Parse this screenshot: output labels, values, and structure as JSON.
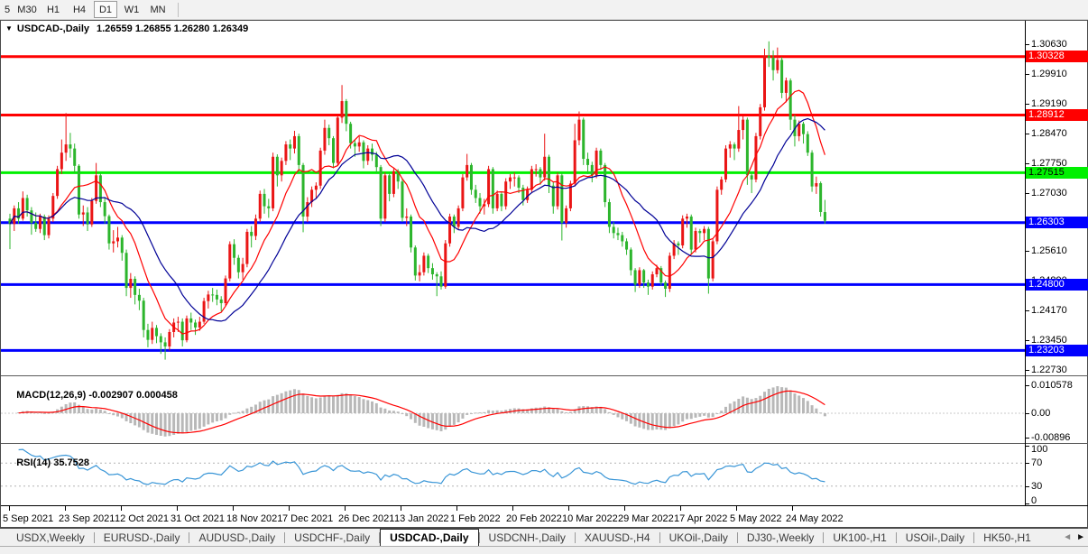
{
  "toolbar": {
    "timeframes": [
      "5",
      "M30",
      "H1",
      "H4",
      "D1",
      "W1",
      "MN"
    ],
    "active": "D1"
  },
  "chart": {
    "dropdown_icon": "▼",
    "title": "USDCAD-,Daily",
    "ohlc": "1.26559 1.26855 1.26280 1.26349",
    "open": "1.26559",
    "high": "1.26855",
    "low": "1.26280",
    "close": "1.26349"
  },
  "price_axis": {
    "ticks": [
      "1.30630",
      "1.29910",
      "1.29190",
      "1.28470",
      "1.27750",
      "1.27030",
      "1.26330",
      "1.25610",
      "1.24890",
      "1.24170",
      "1.23450",
      "1.22730"
    ]
  },
  "chart_data": {
    "type": "candlestick",
    "symbol": "USDCAD-",
    "timeframe": "Daily",
    "bull_color": "#ea1515",
    "bear_color": "#2cb52c",
    "price_range": [
      1.226,
      1.31
    ],
    "hlines": [
      {
        "price": 1.30328,
        "label": "1.30328",
        "color": "#ff0000",
        "text_color": "#ffffff"
      },
      {
        "price": 1.28912,
        "label": "1.28912",
        "color": "#ff0000",
        "text_color": "#ffffff"
      },
      {
        "price": 1.27515,
        "label": "1.27515",
        "color": "#00f000",
        "text_color": "#000000"
      },
      {
        "price": 1.26303,
        "label": "1.26303",
        "color": "#0000ff",
        "text_color": "#ffffff"
      },
      {
        "price": 1.248,
        "label": "1.24800",
        "color": "#0000ff",
        "text_color": "#ffffff"
      },
      {
        "price": 1.23203,
        "label": "1.23203",
        "color": "#0000ff",
        "text_color": "#ffffff"
      }
    ],
    "moving_averages": [
      {
        "period": 10,
        "color": "#ff0000"
      },
      {
        "period": 20,
        "color": "#000096"
      }
    ],
    "candles": [
      [
        1.264,
        1.2652,
        1.2566,
        1.2627
      ],
      [
        1.2627,
        1.2672,
        1.261,
        1.2665
      ],
      [
        1.2665,
        1.268,
        1.2628,
        1.264
      ],
      [
        1.264,
        1.2706,
        1.2635,
        1.269
      ],
      [
        1.269,
        1.2698,
        1.2645,
        1.266
      ],
      [
        1.266,
        1.2668,
        1.2601,
        1.263
      ],
      [
        1.263,
        1.2655,
        1.2608,
        1.2615
      ],
      [
        1.2615,
        1.2652,
        1.2605,
        1.2645
      ],
      [
        1.2645,
        1.265,
        1.2588,
        1.26
      ],
      [
        1.26,
        1.2648,
        1.2592,
        1.264
      ],
      [
        1.264,
        1.2702,
        1.2632,
        1.2695
      ],
      [
        1.2695,
        1.2768,
        1.2688,
        1.276
      ],
      [
        1.276,
        1.2832,
        1.2748,
        1.28
      ],
      [
        1.28,
        1.2896,
        1.278,
        1.282
      ],
      [
        1.282,
        1.2848,
        1.2788,
        1.281
      ],
      [
        1.281,
        1.2822,
        1.275,
        1.2768
      ],
      [
        1.2768,
        1.2772,
        1.264,
        1.265
      ],
      [
        1.265,
        1.2672,
        1.2622,
        1.2655
      ],
      [
        1.2655,
        1.2668,
        1.261,
        1.2626
      ],
      [
        1.2626,
        1.269,
        1.262,
        1.2683
      ],
      [
        1.2683,
        1.2775,
        1.2676,
        1.2745
      ],
      [
        1.2745,
        1.275,
        1.2668,
        1.268
      ],
      [
        1.268,
        1.2692,
        1.2628,
        1.2646
      ],
      [
        1.2646,
        1.265,
        1.2565,
        1.258
      ],
      [
        1.258,
        1.2612,
        1.2558,
        1.2585
      ],
      [
        1.2585,
        1.262,
        1.257,
        1.2594
      ],
      [
        1.2594,
        1.26,
        1.2538,
        1.2557
      ],
      [
        1.2557,
        1.2565,
        1.2452,
        1.2472
      ],
      [
        1.2472,
        1.2508,
        1.2448,
        1.2494
      ],
      [
        1.2494,
        1.25,
        1.2432,
        1.2455
      ],
      [
        1.2455,
        1.247,
        1.2418,
        1.2441
      ],
      [
        1.2441,
        1.2448,
        1.2352,
        1.237
      ],
      [
        1.237,
        1.2385,
        1.2328,
        1.2346
      ],
      [
        1.2346,
        1.239,
        1.2336,
        1.2375
      ],
      [
        1.2375,
        1.2382,
        1.2338,
        1.2355
      ],
      [
        1.2355,
        1.2362,
        1.2312,
        1.234
      ],
      [
        1.234,
        1.2352,
        1.2298,
        1.233
      ],
      [
        1.233,
        1.2372,
        1.232,
        1.2365
      ],
      [
        1.2365,
        1.2398,
        1.2352,
        1.2388
      ],
      [
        1.2388,
        1.2402,
        1.2365,
        1.239
      ],
      [
        1.239,
        1.2398,
        1.233,
        1.2345
      ],
      [
        1.2345,
        1.2405,
        1.234,
        1.2398
      ],
      [
        1.2398,
        1.2412,
        1.237,
        1.2388
      ],
      [
        1.2388,
        1.2395,
        1.2358,
        1.2376
      ],
      [
        1.2376,
        1.2402,
        1.2368,
        1.239
      ],
      [
        1.239,
        1.2448,
        1.2385,
        1.244
      ],
      [
        1.244,
        1.2465,
        1.2422,
        1.2456
      ],
      [
        1.2456,
        1.2472,
        1.2438,
        1.2455
      ],
      [
        1.2455,
        1.2468,
        1.243,
        1.2444
      ],
      [
        1.2444,
        1.2452,
        1.2415,
        1.2435
      ],
      [
        1.2435,
        1.2502,
        1.2428,
        1.2495
      ],
      [
        1.2495,
        1.2585,
        1.2488,
        1.2578
      ],
      [
        1.2578,
        1.259,
        1.2528,
        1.2545
      ],
      [
        1.2545,
        1.2552,
        1.2495,
        1.251
      ],
      [
        1.251,
        1.2545,
        1.2492,
        1.253
      ],
      [
        1.253,
        1.2615,
        1.2522,
        1.2608
      ],
      [
        1.2608,
        1.2622,
        1.257,
        1.2598
      ],
      [
        1.2598,
        1.265,
        1.2588,
        1.264
      ],
      [
        1.264,
        1.2708,
        1.2632,
        1.27
      ],
      [
        1.27,
        1.2712,
        1.2652,
        1.267
      ],
      [
        1.267,
        1.2688,
        1.2642,
        1.2665
      ],
      [
        1.2665,
        1.28,
        1.2658,
        1.279
      ],
      [
        1.279,
        1.2796,
        1.2718,
        1.2745
      ],
      [
        1.2745,
        1.2788,
        1.273,
        1.278
      ],
      [
        1.278,
        1.2828,
        1.277,
        1.282
      ],
      [
        1.282,
        1.2832,
        1.2782,
        1.281
      ],
      [
        1.281,
        1.2853,
        1.2798,
        1.284
      ],
      [
        1.284,
        1.2846,
        1.2752,
        1.277
      ],
      [
        1.277,
        1.2775,
        1.2607,
        1.2645
      ],
      [
        1.2645,
        1.2692,
        1.2632,
        1.268
      ],
      [
        1.268,
        1.2718,
        1.2668,
        1.271
      ],
      [
        1.271,
        1.2728,
        1.2688,
        1.272
      ],
      [
        1.272,
        1.2812,
        1.2712,
        1.2805
      ],
      [
        1.2805,
        1.288,
        1.2795,
        1.286
      ],
      [
        1.286,
        1.2868,
        1.2818,
        1.2835
      ],
      [
        1.2835,
        1.284,
        1.2762,
        1.2775
      ],
      [
        1.2775,
        1.289,
        1.2768,
        1.2885
      ],
      [
        1.2885,
        1.2964,
        1.2872,
        1.2925
      ],
      [
        1.2925,
        1.293,
        1.2852,
        1.287
      ],
      [
        1.287,
        1.2875,
        1.281,
        1.2823
      ],
      [
        1.2823,
        1.2832,
        1.279,
        1.2815
      ],
      [
        1.2815,
        1.284,
        1.2802,
        1.2825
      ],
      [
        1.2825,
        1.283,
        1.2762,
        1.278
      ],
      [
        1.278,
        1.2818,
        1.277,
        1.281
      ],
      [
        1.281,
        1.2822,
        1.278,
        1.2795
      ],
      [
        1.2795,
        1.2802,
        1.275,
        1.2765
      ],
      [
        1.2765,
        1.277,
        1.2622,
        1.264
      ],
      [
        1.264,
        1.2752,
        1.2632,
        1.2745
      ],
      [
        1.2745,
        1.275,
        1.2682,
        1.27
      ],
      [
        1.27,
        1.2762,
        1.2692,
        1.2755
      ],
      [
        1.2755,
        1.276,
        1.2712,
        1.273
      ],
      [
        1.273,
        1.2738,
        1.2632,
        1.2642
      ],
      [
        1.2642,
        1.2665,
        1.2622,
        1.2645
      ],
      [
        1.2645,
        1.265,
        1.2558,
        1.257
      ],
      [
        1.257,
        1.2575,
        1.249,
        1.2502
      ],
      [
        1.2502,
        1.2528,
        1.2488,
        1.251
      ],
      [
        1.251,
        1.2558,
        1.2502,
        1.255
      ],
      [
        1.255,
        1.2555,
        1.2508,
        1.252
      ],
      [
        1.252,
        1.2532,
        1.2492,
        1.2505
      ],
      [
        1.2505,
        1.251,
        1.2452,
        1.25
      ],
      [
        1.25,
        1.2512,
        1.2468,
        1.2475
      ],
      [
        1.2475,
        1.2588,
        1.247,
        1.258
      ],
      [
        1.258,
        1.2652,
        1.2572,
        1.2645
      ],
      [
        1.2645,
        1.265,
        1.2605,
        1.262
      ],
      [
        1.262,
        1.2672,
        1.2612,
        1.2665
      ],
      [
        1.2665,
        1.2748,
        1.2658,
        1.274
      ],
      [
        1.274,
        1.2797,
        1.2732,
        1.277
      ],
      [
        1.277,
        1.2775,
        1.2698,
        1.271
      ],
      [
        1.271,
        1.2722,
        1.2678,
        1.269
      ],
      [
        1.269,
        1.2702,
        1.2652,
        1.267
      ],
      [
        1.267,
        1.2688,
        1.265,
        1.2675
      ],
      [
        1.2675,
        1.2768,
        1.2668,
        1.276
      ],
      [
        1.276,
        1.2765,
        1.2652,
        1.2665
      ],
      [
        1.2665,
        1.2708,
        1.2658,
        1.27
      ],
      [
        1.27,
        1.2705,
        1.2658,
        1.267
      ],
      [
        1.267,
        1.2738,
        1.2662,
        1.273
      ],
      [
        1.273,
        1.2748,
        1.2712,
        1.274
      ],
      [
        1.274,
        1.2752,
        1.2718,
        1.274
      ],
      [
        1.274,
        1.2745,
        1.2702,
        1.2715
      ],
      [
        1.2715,
        1.2722,
        1.2672,
        1.2685
      ],
      [
        1.2685,
        1.2718,
        1.2678,
        1.271
      ],
      [
        1.271,
        1.2768,
        1.2702,
        1.276
      ],
      [
        1.276,
        1.2772,
        1.2742,
        1.276
      ],
      [
        1.276,
        1.2765,
        1.2722,
        1.274
      ],
      [
        1.274,
        1.2846,
        1.2732,
        1.279
      ],
      [
        1.279,
        1.2795,
        1.2702,
        1.272
      ],
      [
        1.272,
        1.2728,
        1.2652,
        1.267
      ],
      [
        1.267,
        1.2752,
        1.2662,
        1.2745
      ],
      [
        1.2745,
        1.275,
        1.2587,
        1.263
      ],
      [
        1.263,
        1.2672,
        1.2618,
        1.2665
      ],
      [
        1.2665,
        1.2732,
        1.2658,
        1.2725
      ],
      [
        1.2725,
        1.287,
        1.2718,
        1.283
      ],
      [
        1.283,
        1.29,
        1.2818,
        1.288
      ],
      [
        1.288,
        1.2885,
        1.277,
        1.2785
      ],
      [
        1.2785,
        1.28,
        1.2748,
        1.277
      ],
      [
        1.277,
        1.2778,
        1.2728,
        1.2745
      ],
      [
        1.2745,
        1.2812,
        1.2738,
        1.2805
      ],
      [
        1.2805,
        1.281,
        1.2758,
        1.277
      ],
      [
        1.277,
        1.2775,
        1.2668,
        1.268
      ],
      [
        1.268,
        1.2688,
        1.2605,
        1.262
      ],
      [
        1.262,
        1.2632,
        1.2592,
        1.2605
      ],
      [
        1.2605,
        1.2618,
        1.2588,
        1.26
      ],
      [
        1.26,
        1.2608,
        1.2572,
        1.2585
      ],
      [
        1.2585,
        1.2592,
        1.2552,
        1.2565
      ],
      [
        1.2565,
        1.257,
        1.2502,
        1.2515
      ],
      [
        1.2515,
        1.252,
        1.2462,
        1.248
      ],
      [
        1.248,
        1.2522,
        1.2472,
        1.2515
      ],
      [
        1.2515,
        1.2518,
        1.2472,
        1.2485
      ],
      [
        1.2485,
        1.2492,
        1.2455,
        1.2475
      ],
      [
        1.2475,
        1.2512,
        1.2468,
        1.2505
      ],
      [
        1.2505,
        1.2528,
        1.2498,
        1.252
      ],
      [
        1.252,
        1.2525,
        1.2478,
        1.2485
      ],
      [
        1.2485,
        1.249,
        1.245,
        1.247
      ],
      [
        1.247,
        1.2558,
        1.2462,
        1.255
      ],
      [
        1.255,
        1.2588,
        1.2542,
        1.258
      ],
      [
        1.258,
        1.2585,
        1.2552,
        1.2575
      ],
      [
        1.2575,
        1.2648,
        1.2568,
        1.264
      ],
      [
        1.264,
        1.2652,
        1.2618,
        1.2645
      ],
      [
        1.2645,
        1.265,
        1.2552,
        1.2565
      ],
      [
        1.2565,
        1.2618,
        1.2558,
        1.261
      ],
      [
        1.261,
        1.2615,
        1.2582,
        1.2605
      ],
      [
        1.2605,
        1.2622,
        1.2588,
        1.2615
      ],
      [
        1.2615,
        1.262,
        1.2458,
        1.2495
      ],
      [
        1.2495,
        1.259,
        1.2488,
        1.2585
      ],
      [
        1.2585,
        1.2718,
        1.2578,
        1.271
      ],
      [
        1.271,
        1.2742,
        1.2698,
        1.2735
      ],
      [
        1.2735,
        1.2818,
        1.2728,
        1.281
      ],
      [
        1.281,
        1.2828,
        1.2788,
        1.282
      ],
      [
        1.282,
        1.2825,
        1.2782,
        1.281
      ],
      [
        1.281,
        1.2913,
        1.2802,
        1.2855
      ],
      [
        1.2855,
        1.2888,
        1.2832,
        1.288
      ],
      [
        1.288,
        1.2885,
        1.2722,
        1.2745
      ],
      [
        1.2745,
        1.2752,
        1.2702,
        1.2735
      ],
      [
        1.2735,
        1.2848,
        1.2728,
        1.284
      ],
      [
        1.284,
        1.2918,
        1.2832,
        1.291
      ],
      [
        1.291,
        1.3052,
        1.2902,
        1.3035
      ],
      [
        1.3035,
        1.307,
        1.3008,
        1.303
      ],
      [
        1.303,
        1.3048,
        1.2975,
        1.3
      ],
      [
        1.3,
        1.3055,
        1.2992,
        1.3025
      ],
      [
        1.3025,
        1.3032,
        1.2932,
        1.2945
      ],
      [
        1.2945,
        1.2982,
        1.2922,
        1.2975
      ],
      [
        1.2975,
        1.298,
        1.2855,
        1.288
      ],
      [
        1.288,
        1.2892,
        1.2815,
        1.284
      ],
      [
        1.284,
        1.2878,
        1.2828,
        1.287
      ],
      [
        1.287,
        1.2875,
        1.2822,
        1.2845
      ],
      [
        1.2845,
        1.2852,
        1.2792,
        1.28
      ],
      [
        1.28,
        1.2806,
        1.2705,
        1.2718
      ],
      [
        1.2718,
        1.2742,
        1.27,
        1.2726
      ],
      [
        1.2726,
        1.273,
        1.2645,
        1.2656
      ],
      [
        1.26559,
        1.26855,
        1.2628,
        1.26349
      ]
    ]
  },
  "indicators": {
    "macd": {
      "label": "MACD(12,26,9)",
      "params": [
        12,
        26,
        9
      ],
      "value_main": "-0.002907",
      "value_signal": "0.000458",
      "scale": [
        "0.010578",
        "0.00",
        "-0.00896"
      ],
      "histogram_color": "#b8b8b8",
      "signal_color": "#ff0000"
    },
    "rsi": {
      "label": "RSI(14)",
      "period": 14,
      "value": "35.7528",
      "scale": [
        "100",
        "70",
        "30",
        "0"
      ],
      "levels": [
        70,
        30
      ],
      "line_color": "#3a96d7"
    }
  },
  "time_axis": {
    "labels": [
      "5 Sep 2021",
      "23 Sep 2021",
      "12 Oct 2021",
      "31 Oct 2021",
      "18 Nov 2021",
      "7 Dec 2021",
      "26 Dec 2021",
      "13 Jan 2022",
      "1 Feb 2022",
      "20 Feb 2022",
      "10 Mar 2022",
      "29 Mar 2022",
      "17 Apr 2022",
      "5 May 2022",
      "24 May 2022"
    ]
  },
  "tabbar": {
    "tabs": [
      "USDX,Weekly",
      "EURUSD-,Daily",
      "AUDUSD-,Daily",
      "USDCHF-,Daily",
      "USDCAD-,Daily",
      "USDCNH-,Daily",
      "XAUUSD-,H4",
      "UKOil-,Daily",
      "DJ30-,Weekly",
      "UK100-,H1",
      "USOil-,Daily",
      "HK50-,H1"
    ],
    "active": "USDCAD-,Daily",
    "scroll_left_icon": "◄",
    "scroll_right_icon": "►"
  }
}
